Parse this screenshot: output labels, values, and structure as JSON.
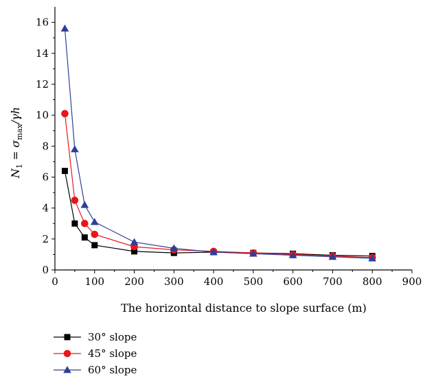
{
  "chart_data": {
    "type": "line",
    "xlabel": "The horizontal distance to slope surface (m)",
    "ylabel": {
      "N": "N",
      "sub1": "1",
      "eq": " = ",
      "sigma": "σ",
      "submax": "max",
      "rest": "/γh"
    },
    "xlim": [
      0,
      900
    ],
    "ylim": [
      0,
      17
    ],
    "xticks": [
      0,
      100,
      200,
      300,
      400,
      500,
      600,
      700,
      800,
      900
    ],
    "yticks": [
      0,
      2,
      4,
      6,
      8,
      10,
      12,
      14,
      16
    ],
    "x": [
      25,
      50,
      75,
      100,
      200,
      300,
      400,
      500,
      600,
      700,
      800
    ],
    "series": [
      {
        "name": "30° slope",
        "color": "#000000",
        "marker": "square",
        "values": [
          6.4,
          3.0,
          2.1,
          1.6,
          1.2,
          1.1,
          1.15,
          1.1,
          1.05,
          0.95,
          0.9
        ]
      },
      {
        "name": "45° slope",
        "color": "#e8161b",
        "marker": "circle",
        "values": [
          10.1,
          4.5,
          3.0,
          2.3,
          1.5,
          1.3,
          1.2,
          1.1,
          1.0,
          0.9,
          0.8
        ]
      },
      {
        "name": "60° slope",
        "color": "#2e3f98",
        "marker": "triangle",
        "values": [
          15.6,
          7.8,
          4.2,
          3.1,
          1.8,
          1.4,
          1.15,
          1.05,
          0.95,
          0.85,
          0.75
        ]
      }
    ],
    "grid": false,
    "legend": "bottom-left"
  }
}
